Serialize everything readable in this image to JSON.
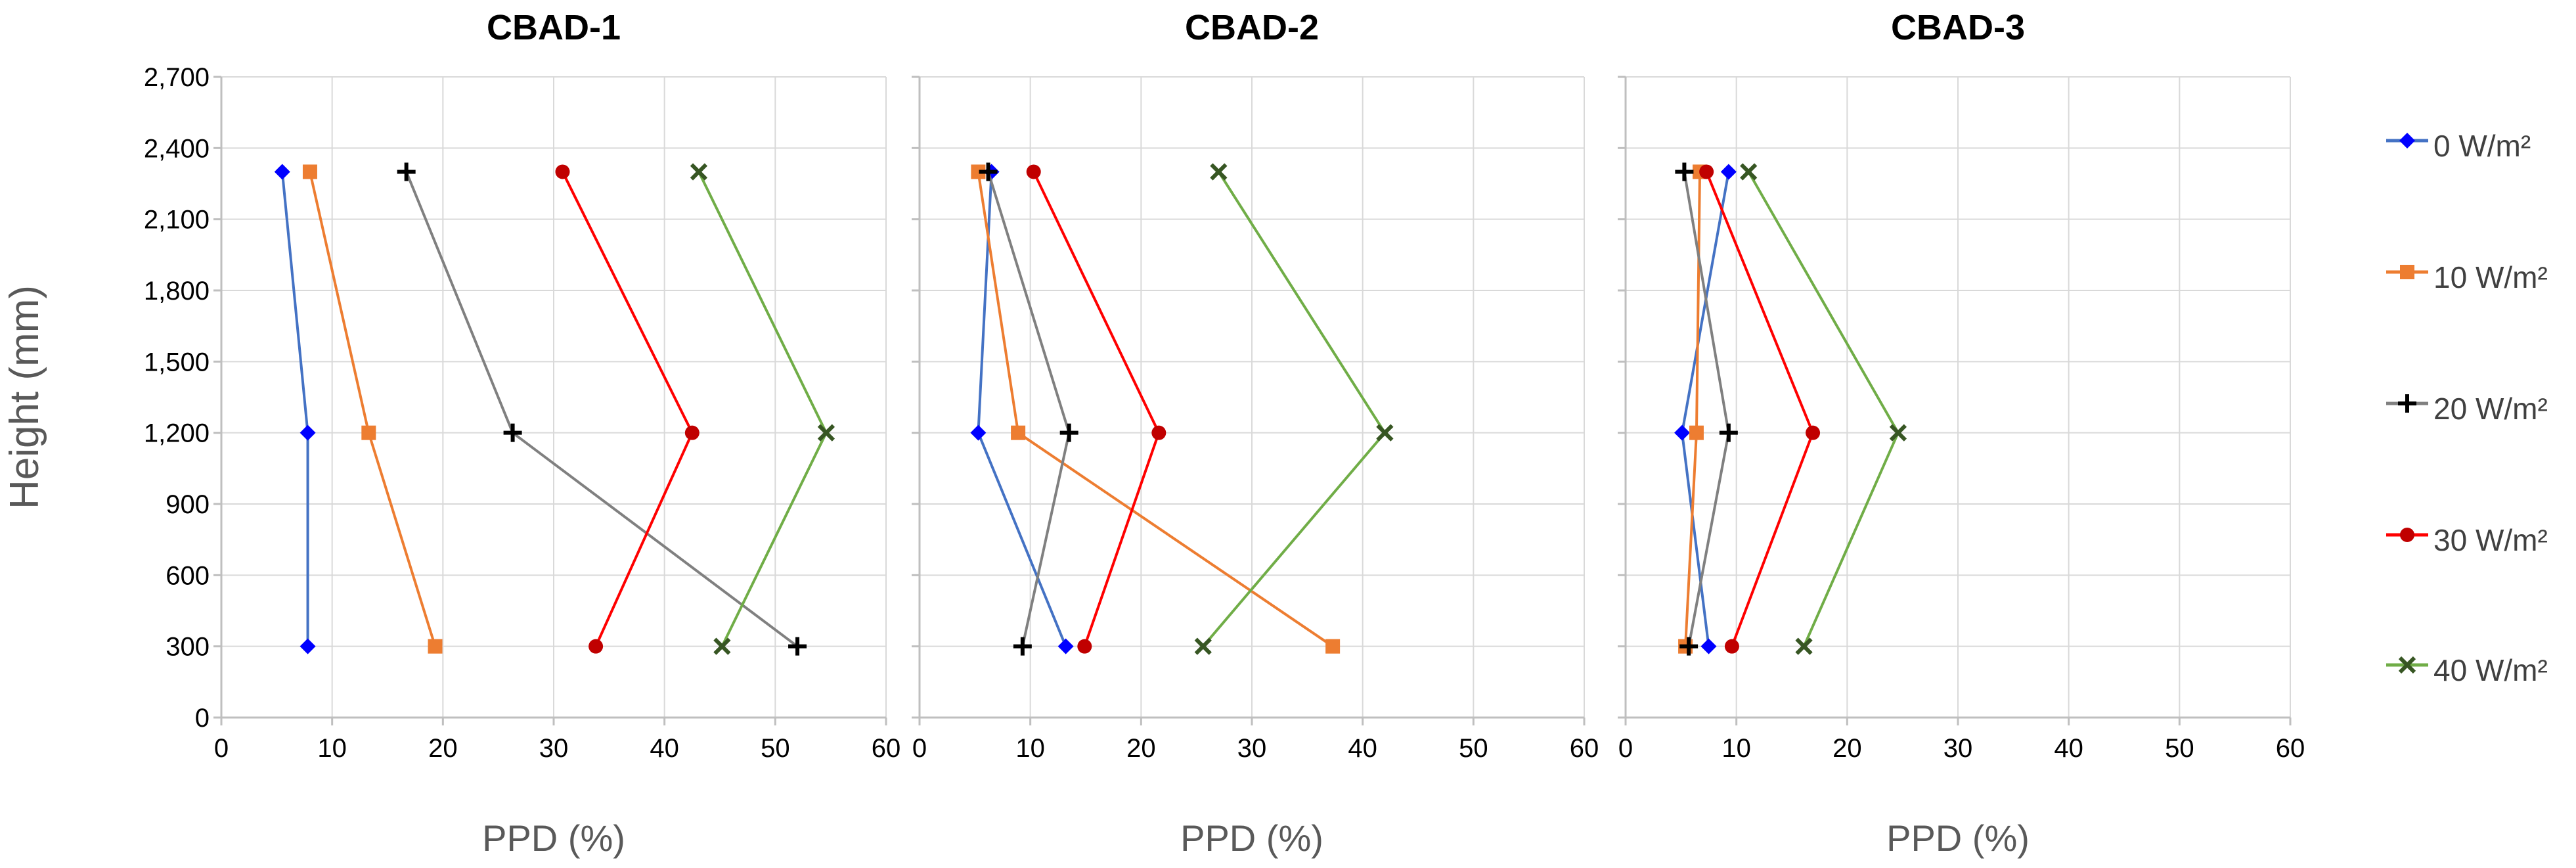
{
  "chart_data": {
    "type": "line",
    "ylabel": "Height (mm)",
    "ylim": [
      0,
      2700
    ],
    "yticks": [
      0,
      300,
      600,
      900,
      1200,
      1500,
      1800,
      2100,
      2400,
      2700
    ],
    "ytick_labels": [
      "0",
      "300",
      "600",
      "900",
      "1,200",
      "1,500",
      "1,800",
      "2,100",
      "2,400",
      "2,700"
    ],
    "xlim": [
      0,
      60
    ],
    "xticks": [
      0,
      10,
      20,
      30,
      40,
      50,
      60
    ],
    "xtick_labels": [
      "0",
      "10",
      "20",
      "30",
      "40",
      "50",
      "60"
    ],
    "grid": true,
    "heights": [
      300,
      1200,
      2300
    ],
    "legend": {
      "placement": "right",
      "entries": [
        {
          "label": "0 W/m²",
          "color": "#4472C4",
          "marker_color": "#0000FF",
          "marker": "diamond"
        },
        {
          "label": "10 W/m²",
          "color": "#ED7D31",
          "marker_color": "#ED7D31",
          "marker": "square"
        },
        {
          "label": "20 W/m²",
          "color": "#808080",
          "marker_color": "#000000",
          "marker": "plus"
        },
        {
          "label": "30 W/m²",
          "color": "#FF0000",
          "marker_color": "#C00000",
          "marker": "circle"
        },
        {
          "label": "40 W/m²",
          "color": "#70AD47",
          "marker_color": "#375623",
          "marker": "x"
        }
      ]
    },
    "panels": [
      {
        "title": "CBAD-1",
        "xlabel": "PPD (%)",
        "series": [
          {
            "name": "0 W/m²",
            "values": [
              7.8,
              7.8,
              5.5
            ]
          },
          {
            "name": "10 W/m²",
            "values": [
              19.3,
              13.3,
              8.0
            ]
          },
          {
            "name": "20 W/m²",
            "values": [
              52.0,
              26.3,
              16.7
            ]
          },
          {
            "name": "30 W/m²",
            "values": [
              33.8,
              42.5,
              30.8
            ]
          },
          {
            "name": "40 W/m²",
            "values": [
              45.2,
              54.6,
              43.1
            ]
          }
        ]
      },
      {
        "title": "CBAD-2",
        "xlabel": "PPD (%)",
        "series": [
          {
            "name": "0 W/m²",
            "values": [
              13.2,
              5.3,
              6.5
            ]
          },
          {
            "name": "10 W/m²",
            "values": [
              37.3,
              8.9,
              5.3
            ]
          },
          {
            "name": "20 W/m²",
            "values": [
              9.3,
              13.5,
              6.2
            ]
          },
          {
            "name": "30 W/m²",
            "values": [
              14.9,
              21.6,
              10.3
            ]
          },
          {
            "name": "40 W/m²",
            "values": [
              25.6,
              42.0,
              27.0
            ]
          }
        ]
      },
      {
        "title": "CBAD-3",
        "xlabel": "PPD (%)",
        "series": [
          {
            "name": "0 W/m²",
            "values": [
              7.5,
              5.1,
              9.3
            ]
          },
          {
            "name": "10 W/m²",
            "values": [
              5.4,
              6.4,
              6.7
            ]
          },
          {
            "name": "20 W/m²",
            "values": [
              5.7,
              9.3,
              5.3
            ]
          },
          {
            "name": "30 W/m²",
            "values": [
              9.6,
              16.9,
              7.3
            ]
          },
          {
            "name": "40 W/m²",
            "values": [
              16.1,
              24.6,
              11.1
            ]
          }
        ]
      }
    ]
  }
}
